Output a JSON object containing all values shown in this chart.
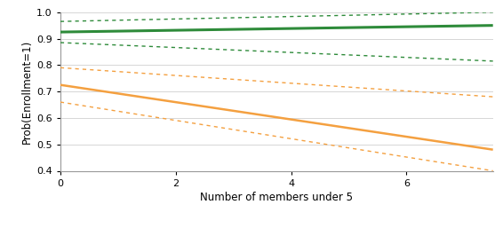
{
  "x": [
    0,
    7.5
  ],
  "q1_line": [
    0.725,
    0.48
  ],
  "q1_ci_upper": [
    0.79,
    0.68
  ],
  "q1_ci_lower": [
    0.66,
    0.4
  ],
  "q5_line": [
    0.925,
    0.95
  ],
  "q5_ci_upper": [
    0.965,
    1.0
  ],
  "q5_ci_lower": [
    0.885,
    0.815
  ],
  "q1_color": "#F4A040",
  "q5_color": "#2E8B3A",
  "ylim": [
    0.4,
    1.0
  ],
  "xlim": [
    0,
    7.5
  ],
  "xticks": [
    0,
    2,
    4,
    6
  ],
  "yticks": [
    0.4,
    0.5,
    0.6,
    0.7,
    0.8,
    0.9,
    1
  ],
  "xlabel": "Number of members under 5",
  "ylabel": "Prob(Enrollment=1)",
  "background_color": "#ffffff",
  "grid_color": "#d0d0d0"
}
